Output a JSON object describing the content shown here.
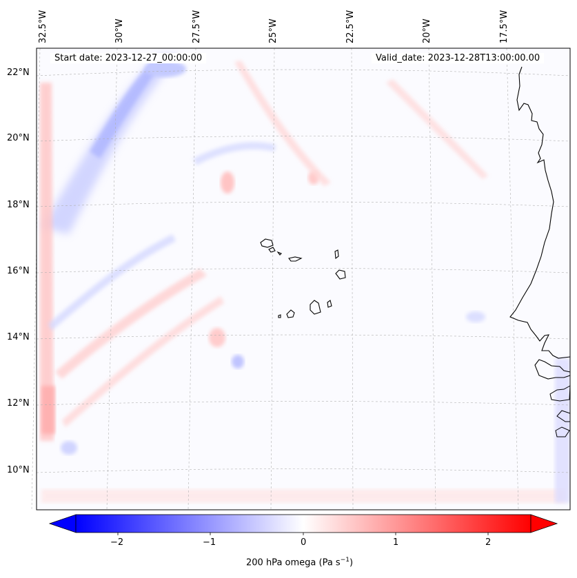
{
  "map": {
    "start_date": "Start date: 2023-12-27_00:00:00",
    "valid_date": "Valid_date: 2023-12-28T13:00:00.00",
    "lon_labels": [
      "32.5°W",
      "30°W",
      "27.5°W",
      "25°W",
      "22.5°W",
      "20°W",
      "17.5°W"
    ],
    "lat_labels": [
      "22°N",
      "20°N",
      "18°N",
      "16°N",
      "14°N",
      "12°N",
      "10°N"
    ]
  },
  "colorbar": {
    "ticks": [
      "−2",
      "−1",
      "0",
      "1",
      "2"
    ],
    "tick_values": [
      -2,
      -1,
      0,
      1,
      2
    ],
    "range": [
      -2.6,
      2.6
    ],
    "label": "200 hPa omega (Pa s",
    "label_sup": "−1",
    "label_end": ")",
    "colors": {
      "neg": "#0000ff",
      "mid": "#ffffff",
      "pos": "#ff0000"
    }
  },
  "style": {
    "coast": "#000000",
    "grid": "#b0b0b0"
  }
}
